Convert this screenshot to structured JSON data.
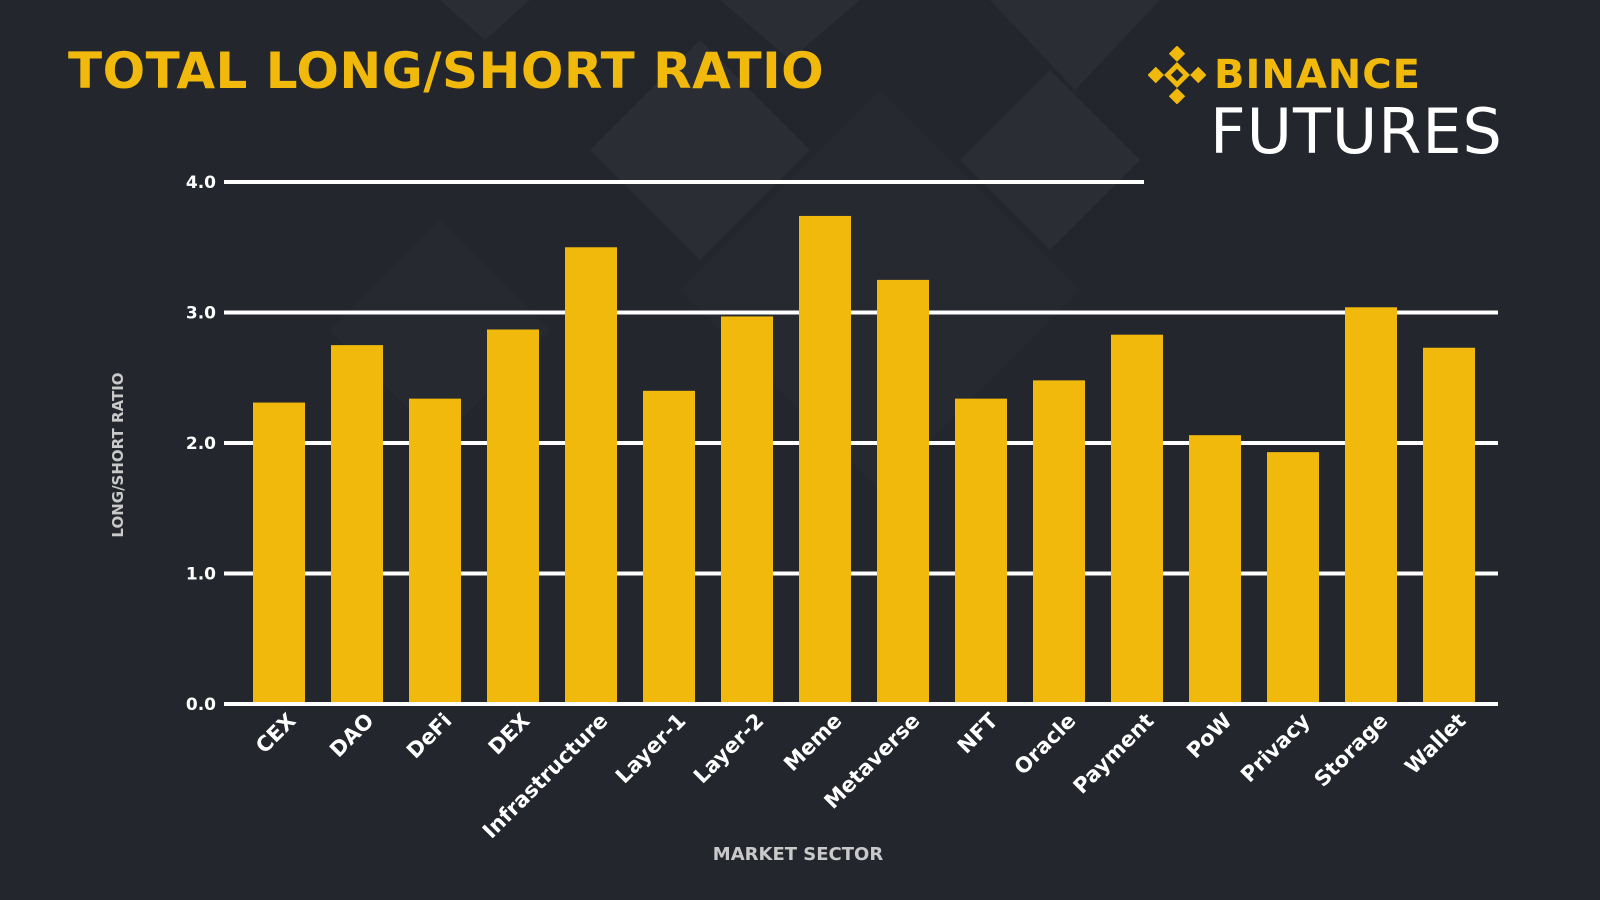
{
  "header": {
    "title": "TOTAL LONG/SHORT RATIO",
    "brand_name": "BINANCE",
    "brand_product": "FUTURES",
    "brand_mark_icon": "binance-diamond-icon"
  },
  "colors": {
    "background": "#23262d",
    "bar": "#f0b90b",
    "accent": "#f0b90b",
    "grid": "#ffffff",
    "axis_label": "#c9c9c9"
  },
  "chart_data": {
    "type": "bar",
    "categories": [
      "CEX",
      "DAO",
      "DeFi",
      "DEX",
      "Infrastructure",
      "Layer-1",
      "Layer-2",
      "Meme",
      "Metaverse",
      "NFT",
      "Oracle",
      "Payment",
      "PoW",
      "Privacy",
      "Storage",
      "Wallet"
    ],
    "values": [
      2.31,
      2.75,
      2.34,
      2.87,
      3.5,
      2.4,
      2.97,
      3.74,
      3.25,
      2.34,
      2.48,
      2.83,
      2.06,
      1.93,
      3.04,
      2.73
    ],
    "title": "TOTAL LONG/SHORT RATIO",
    "xlabel": "MARKET SECTOR",
    "ylabel": "LONG/SHORT RATIO",
    "ylim": [
      0,
      4
    ],
    "yticks": [
      0,
      1,
      2,
      3,
      4
    ],
    "ytick_labels": [
      "0.0",
      "1.0",
      "2.0",
      "3.0",
      "4.0"
    ],
    "grid": true,
    "legend": "none"
  }
}
